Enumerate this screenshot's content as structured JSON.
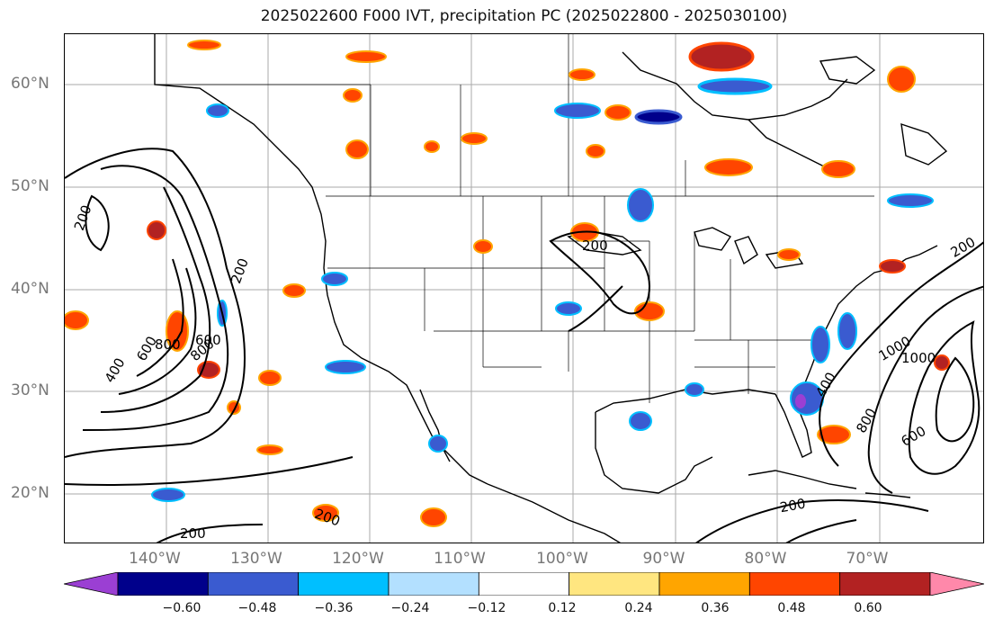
{
  "title": "2025022600 F000 IVT, precipitation PC (2025022800 - 2025030100)",
  "latitude_labels": [
    "60°N",
    "50°N",
    "40°N",
    "30°N",
    "20°N"
  ],
  "longitude_labels": [
    "140°W",
    "130°W",
    "120°W",
    "110°W",
    "100°W",
    "90°W",
    "80°W",
    "70°W"
  ],
  "contour_labels": [
    "200",
    "200",
    "200",
    "400",
    "600",
    "800",
    "800",
    "600",
    "1000",
    "400",
    "800",
    "1000",
    "600",
    "200",
    "200",
    "200",
    "200"
  ],
  "colorbar": {
    "ticks": [
      "−0.60",
      "−0.48",
      "−0.36",
      "−0.24",
      "−0.12",
      "0.12",
      "0.24",
      "0.36",
      "0.48",
      "0.60"
    ],
    "colors": [
      "#9b3fd3",
      "#00008b",
      "#3a5bd0",
      "#00bfff",
      "#b3e0ff",
      "#ffffff",
      "#ffe680",
      "#ffa500",
      "#ff4500",
      "#b22222",
      "#ff88aa"
    ]
  },
  "colors": {
    "negative_fill": "#3a5bd0",
    "positive_fill": "#ff4500",
    "contour": "#000000"
  }
}
